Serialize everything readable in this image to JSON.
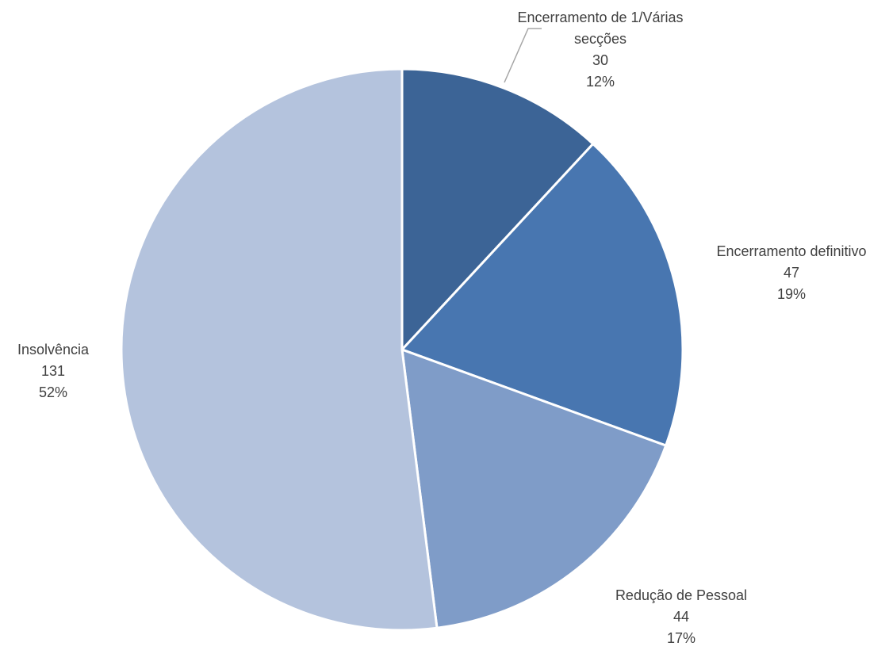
{
  "chart_data": {
    "type": "pie",
    "title": "",
    "slices": [
      {
        "label_lines": [
          "Encerramento de 1/Várias",
          "secções"
        ],
        "value": 30,
        "percent_label": "12%",
        "color": "#3c6496"
      },
      {
        "label_lines": [
          "Encerramento definitivo"
        ],
        "value": 47,
        "percent_label": "19%",
        "color": "#4876b0"
      },
      {
        "label_lines": [
          "Redução de Pessoal"
        ],
        "value": 44,
        "percent_label": "17%",
        "color": "#7f9cc8"
      },
      {
        "label_lines": [
          "Insolvência"
        ],
        "value": 131,
        "percent_label": "52%",
        "color": "#b4c3dd"
      }
    ],
    "start_angle": "12 o'clock",
    "direction": "clockwise",
    "legend": "none"
  }
}
